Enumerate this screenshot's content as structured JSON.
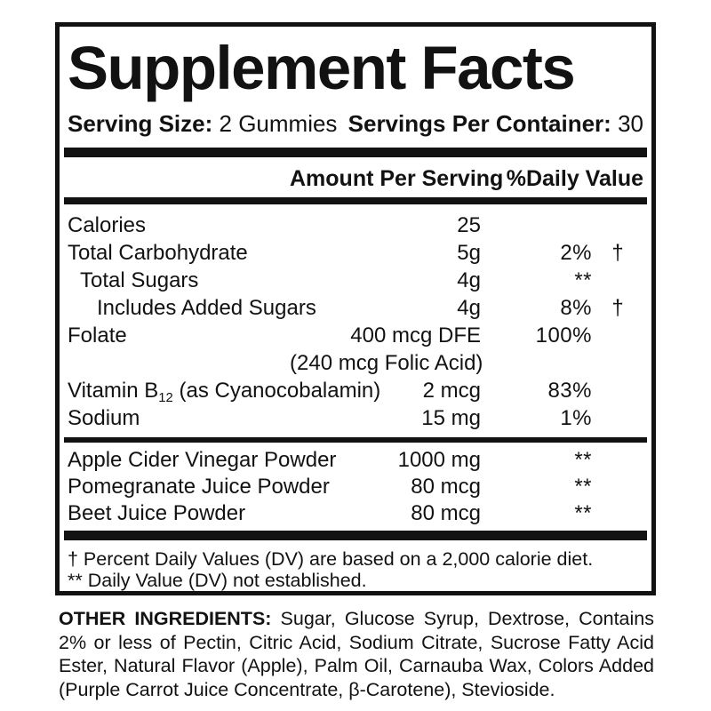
{
  "colors": {
    "ink": "#121212",
    "background": "#ffffff"
  },
  "title": "Supplement Facts",
  "serving": {
    "size_label": "Serving Size:",
    "size_value": "2 Gummies",
    "per_container_label": "Servings Per Container:",
    "per_container_value": "30"
  },
  "header": {
    "amount": "Amount Per Serving",
    "daily_value": "%Daily Value"
  },
  "main_rows": [
    {
      "label": "Calories",
      "amount": "25",
      "dv": "",
      "symbol": ""
    },
    {
      "label": "Total Carbohydrate",
      "amount": "5g",
      "dv": "2%",
      "symbol": "†"
    },
    {
      "label": "Total Sugars",
      "indent": 1,
      "amount": "4g",
      "dv": "**",
      "symbol": ""
    },
    {
      "label": "Includes Added Sugars",
      "indent": 2,
      "amount": "4g",
      "dv": "8%",
      "symbol": "†"
    },
    {
      "label": "Folate",
      "amount": "400 mcg DFE",
      "dv": "100%",
      "symbol": ""
    },
    {
      "label": "",
      "amount": "(240 mcg Folic Acid)",
      "dv": "",
      "symbol": ""
    },
    {
      "label_parts": [
        {
          "t": "Vitamin B"
        },
        {
          "sub": "12"
        },
        {
          "t": " (as Cyanocobalamin)"
        }
      ],
      "amount": "2 mcg",
      "dv": "83%",
      "symbol": ""
    },
    {
      "label": "Sodium",
      "amount": "15 mg",
      "dv": "1%",
      "symbol": ""
    }
  ],
  "blend_rows": [
    {
      "label": "Apple Cider Vinegar Powder",
      "amount": "1000 mg",
      "dv": "**",
      "symbol": ""
    },
    {
      "label": "Pomegranate Juice Powder",
      "amount": "80 mcg",
      "dv": "**",
      "symbol": ""
    },
    {
      "label": "Beet Juice Powder",
      "amount": "80 mcg",
      "dv": "**",
      "symbol": ""
    }
  ],
  "footnotes": [
    "† Percent Daily Values (DV) are based on a 2,000 calorie diet.",
    "** Daily Value (DV) not established."
  ],
  "other_ingredients": {
    "label": "OTHER INGREDIENTS:",
    "text": " Sugar, Glucose Syrup, Dextrose, Contains 2% or less of Pectin, Citric Acid, Sodium Citrate, Sucrose Fatty Acid Ester, Natural Flavor (Apple), Palm Oil, Carnauba Wax, Colors Added (Purple Carrot Juice Concentrate, β-Carotene), Stevioside."
  }
}
